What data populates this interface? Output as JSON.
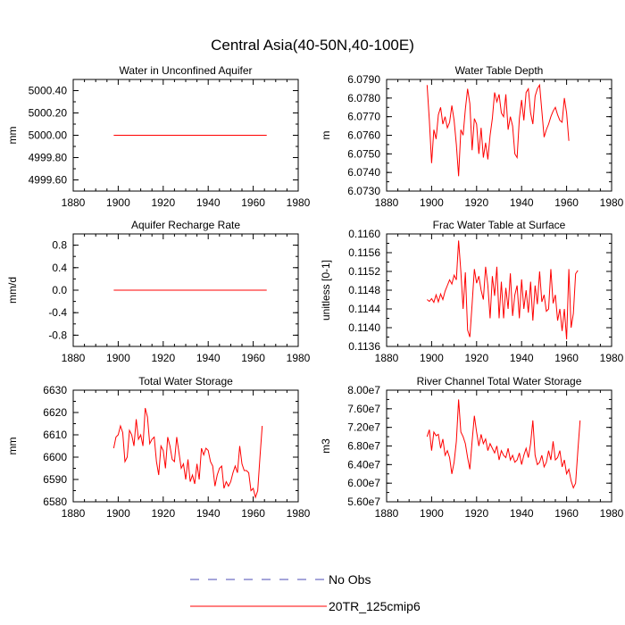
{
  "title": "Central Asia(40-50N,40-100E)",
  "colors": {
    "model": "#ff0000",
    "obs": "#4b4bb4",
    "axis": "#000000"
  },
  "legend": {
    "placement": "bottom-center",
    "items": [
      {
        "label": "No Obs",
        "style": "dashed",
        "color": "#4b4bb4"
      },
      {
        "label": "20TR_125cmip6",
        "style": "solid",
        "color": "#ff0000"
      }
    ]
  },
  "chart_data": [
    {
      "type": "line",
      "title": "Water in Unconfined Aquifer",
      "ylabel": "mm",
      "xlim": [
        1880,
        1980
      ],
      "ylim": [
        4999.5,
        5000.5
      ],
      "xticks": [
        "1880",
        "1900",
        "1920",
        "1940",
        "1960",
        "1980"
      ],
      "yticks": [
        {
          "v": 4999.6,
          "label": "4999.60"
        },
        {
          "v": 4999.8,
          "label": "4999.80"
        },
        {
          "v": 5000.0,
          "label": "5000.00"
        },
        {
          "v": 5000.2,
          "label": "5000.20"
        },
        {
          "v": 5000.4,
          "label": "5000.40"
        }
      ],
      "x_start": 1898,
      "series": [
        {
          "values": [
            5000,
            5000,
            5000,
            5000,
            5000,
            5000,
            5000,
            5000,
            5000,
            5000,
            5000,
            5000,
            5000,
            5000,
            5000,
            5000,
            5000,
            5000,
            5000,
            5000,
            5000,
            5000,
            5000,
            5000,
            5000,
            5000,
            5000,
            5000,
            5000,
            5000,
            5000,
            5000,
            5000,
            5000,
            5000,
            5000,
            5000,
            5000,
            5000,
            5000,
            5000,
            5000,
            5000,
            5000,
            5000,
            5000,
            5000,
            5000,
            5000,
            5000,
            5000,
            5000,
            5000,
            5000,
            5000,
            5000,
            5000,
            5000,
            5000,
            5000,
            5000,
            5000,
            5000,
            5000,
            5000,
            5000,
            5000,
            5000,
            5000
          ]
        }
      ]
    },
    {
      "type": "line",
      "title": "Water Table Depth",
      "ylabel": "m",
      "xlim": [
        1880,
        1980
      ],
      "ylim": [
        6.073,
        6.079
      ],
      "xticks": [
        "1880",
        "1900",
        "1920",
        "1940",
        "1960",
        "1980"
      ],
      "yticks": [
        {
          "v": 6.073,
          "label": "6.0730"
        },
        {
          "v": 6.074,
          "label": "6.0740"
        },
        {
          "v": 6.075,
          "label": "6.0750"
        },
        {
          "v": 6.076,
          "label": "6.0760"
        },
        {
          "v": 6.077,
          "label": "6.0770"
        },
        {
          "v": 6.078,
          "label": "6.0780"
        },
        {
          "v": 6.079,
          "label": "6.0790"
        }
      ],
      "x_start": 1898,
      "series": [
        {
          "values": [
            6.0787,
            6.0768,
            6.0745,
            6.0763,
            6.0758,
            6.0771,
            6.0775,
            6.0766,
            6.077,
            6.0764,
            6.0767,
            6.0776,
            6.0768,
            6.0755,
            6.0738,
            6.0763,
            6.076,
            6.0774,
            6.0785,
            6.0777,
            6.0752,
            6.0769,
            6.0766,
            6.075,
            6.0764,
            6.0748,
            6.0756,
            6.0747,
            6.076,
            6.0769,
            6.0783,
            6.0778,
            6.0782,
            6.0772,
            6.077,
            6.0782,
            6.0763,
            6.077,
            6.0765,
            6.075,
            6.0748,
            6.0769,
            6.0779,
            6.0768,
            6.0783,
            6.0785,
            6.0772,
            6.0766,
            6.0781,
            6.0785,
            6.0787,
            6.0773,
            6.0759,
            6.0763,
            6.0766,
            6.077,
            6.0773,
            6.0775,
            6.0771,
            6.0768,
            6.0767,
            6.078,
            6.0772,
            6.0757
          ]
        }
      ]
    },
    {
      "type": "line",
      "title": "Aquifer Recharge Rate",
      "ylabel": "mm/d",
      "xlim": [
        1880,
        1980
      ],
      "ylim": [
        -1.0,
        1.0
      ],
      "xticks": [
        "1880",
        "1900",
        "1920",
        "1940",
        "1960",
        "1980"
      ],
      "yticks": [
        {
          "v": -0.8,
          "label": "-0.8"
        },
        {
          "v": -0.4,
          "label": "-0.4"
        },
        {
          "v": 0.0,
          "label": "0.0"
        },
        {
          "v": 0.4,
          "label": "0.4"
        },
        {
          "v": 0.8,
          "label": "0.8"
        }
      ],
      "x_start": 1898,
      "series": [
        {
          "values": [
            0,
            0,
            0,
            0,
            0,
            0,
            0,
            0,
            0,
            0,
            0,
            0,
            0,
            0,
            0,
            0,
            0,
            0,
            0,
            0,
            0,
            0,
            0,
            0,
            0,
            0,
            0,
            0,
            0,
            0,
            0,
            0,
            0,
            0,
            0,
            0,
            0,
            0,
            0,
            0,
            0,
            0,
            0,
            0,
            0,
            0,
            0,
            0,
            0,
            0,
            0,
            0,
            0,
            0,
            0,
            0,
            0,
            0,
            0,
            0,
            0,
            0,
            0,
            0,
            0,
            0,
            0,
            0,
            0
          ]
        }
      ]
    },
    {
      "type": "line",
      "title": "Frac Water Table at Surface",
      "ylabel": "unitless [0-1]",
      "xlim": [
        1880,
        1980
      ],
      "ylim": [
        0.1136,
        0.116
      ],
      "xticks": [
        "1880",
        "1900",
        "1920",
        "1940",
        "1960",
        "1980"
      ],
      "yticks": [
        {
          "v": 0.1136,
          "label": "0.1136"
        },
        {
          "v": 0.114,
          "label": "0.1140"
        },
        {
          "v": 0.1144,
          "label": "0.1144"
        },
        {
          "v": 0.1148,
          "label": "0.1148"
        },
        {
          "v": 0.1152,
          "label": "0.1152"
        },
        {
          "v": 0.1156,
          "label": "0.1156"
        },
        {
          "v": 0.116,
          "label": "0.1160"
        }
      ],
      "x_start": 1898,
      "series": [
        {
          "values": [
            0.1146,
            0.11456,
            0.11462,
            0.11454,
            0.1147,
            0.11455,
            0.11472,
            0.1146,
            0.11478,
            0.1149,
            0.11502,
            0.11493,
            0.11512,
            0.11502,
            0.11586,
            0.1152,
            0.1144,
            0.11518,
            0.11395,
            0.1138,
            0.1145,
            0.11525,
            0.11495,
            0.1151,
            0.1148,
            0.1146,
            0.1153,
            0.1149,
            0.1142,
            0.1151,
            0.11468,
            0.1153,
            0.1142,
            0.11498,
            0.1142,
            0.11485,
            0.1144,
            0.11516,
            0.11425,
            0.1147,
            0.1149,
            0.1142,
            0.11503,
            0.1144,
            0.1148,
            0.11432,
            0.11498,
            0.11415,
            0.1149,
            0.1145,
            0.1152,
            0.11455,
            0.1147,
            0.11435,
            0.1144,
            0.11525,
            0.11452,
            0.1147,
            0.11415,
            0.1144,
            0.11393,
            0.1144,
            0.11375,
            0.11525,
            0.114,
            0.1143,
            0.11515,
            0.11522
          ]
        }
      ]
    },
    {
      "type": "line",
      "title": "Total Water Storage",
      "ylabel": "mm",
      "xlim": [
        1880,
        1980
      ],
      "ylim": [
        6580,
        6630
      ],
      "xticks": [
        "1880",
        "1900",
        "1920",
        "1940",
        "1960",
        "1980"
      ],
      "yticks": [
        {
          "v": 6580,
          "label": "6580"
        },
        {
          "v": 6590,
          "label": "6590"
        },
        {
          "v": 6600,
          "label": "6600"
        },
        {
          "v": 6610,
          "label": "6610"
        },
        {
          "v": 6620,
          "label": "6620"
        },
        {
          "v": 6630,
          "label": "6630"
        }
      ],
      "x_start": 1898,
      "series": [
        {
          "values": [
            6604,
            6609,
            6610,
            6614,
            6611,
            6598,
            6600,
            6612,
            6610,
            6605,
            6617,
            6608,
            6610,
            6605,
            6622,
            6618,
            6606,
            6608,
            6609,
            6598,
            6592,
            6605,
            6603,
            6595,
            6609,
            6605,
            6599,
            6598,
            6609,
            6602,
            6595,
            6597,
            6590,
            6599,
            6589,
            6592,
            6588,
            6597,
            6590,
            6604,
            6601,
            6604,
            6603,
            6598,
            6596,
            6587,
            6592,
            6595,
            6596,
            6586,
            6589,
            6587,
            6589,
            6593,
            6596,
            6593,
            6605,
            6597,
            6594,
            6594,
            6593,
            6585,
            6586,
            6582,
            6585,
            6600,
            6614
          ]
        }
      ]
    },
    {
      "type": "line",
      "title": "River Channel Total Water Storage",
      "ylabel": "m3",
      "xlim": [
        1880,
        1980
      ],
      "ylim": [
        56000000.0,
        80000000.0
      ],
      "xticks": [
        "1880",
        "1900",
        "1920",
        "1940",
        "1960",
        "1980"
      ],
      "yticks": [
        {
          "v": 56000000.0,
          "label": "5.60e7"
        },
        {
          "v": 60000000.0,
          "label": "6.00e7"
        },
        {
          "v": 64000000.0,
          "label": "6.40e7"
        },
        {
          "v": 68000000.0,
          "label": "6.80e7"
        },
        {
          "v": 72000000.0,
          "label": "7.20e7"
        },
        {
          "v": 76000000.0,
          "label": "7.60e7"
        },
        {
          "v": 80000000.0,
          "label": "8.00e7"
        }
      ],
      "x_start": 1898,
      "series": [
        {
          "values": [
            70000000.0,
            71500000.0,
            67000000.0,
            71000000.0,
            70200000.0,
            70500000.0,
            67500000.0,
            69500000.0,
            66000000.0,
            67000000.0,
            65500000.0,
            62000000.0,
            64500000.0,
            69000000.0,
            78000000.0,
            71000000.0,
            70000000.0,
            68500000.0,
            65500000.0,
            63000000.0,
            69000000.0,
            74500000.0,
            71000000.0,
            68000000.0,
            70500000.0,
            68500000.0,
            69500000.0,
            67000000.0,
            68500000.0,
            67500000.0,
            66500000.0,
            68000000.0,
            65000000.0,
            67000000.0,
            66000000.0,
            65500000.0,
            67500000.0,
            65000000.0,
            66000000.0,
            64500000.0,
            65000000.0,
            66500000.0,
            64000000.0,
            66000000.0,
            67500000.0,
            65500000.0,
            68500000.0,
            73500000.0,
            66000000.0,
            64000000.0,
            64500000.0,
            66000000.0,
            63500000.0,
            64500000.0,
            67000000.0,
            65000000.0,
            69000000.0,
            65000000.0,
            65500000.0,
            67000000.0,
            63500000.0,
            65000000.0,
            62000000.0,
            63000000.0,
            60500000.0,
            59000000.0,
            60000000.0,
            67000000.0,
            73500000.0
          ]
        }
      ]
    }
  ]
}
